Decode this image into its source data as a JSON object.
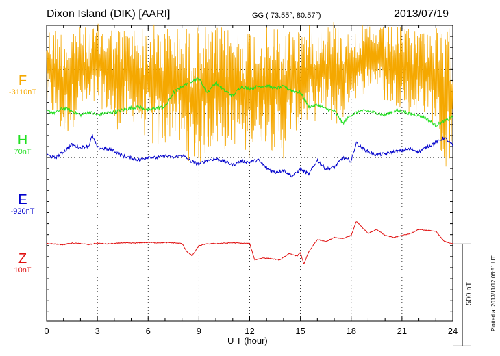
{
  "header": {
    "station": "Dixon Island (DIK)  [AARI]",
    "gg": "GG ( 73.55°,  80.57°)",
    "date": "2013/07/19"
  },
  "plotted_note": "Plotted at 2013/11/12 06:51  UT",
  "scale_label": "500 nT",
  "colors": {
    "F": "#f5a800",
    "H": "#22e022",
    "E": "#0000cc",
    "Z": "#e01010"
  },
  "chart_data": {
    "type": "line",
    "title": "Dixon Island (DIK)  [AARI]",
    "xlabel": "U T (hour)",
    "xlim": [
      0,
      24
    ],
    "x_ticks": [
      0,
      3,
      6,
      9,
      12,
      15,
      18,
      21,
      24
    ],
    "x_tick_labels": [
      "0",
      "3",
      "6",
      "9",
      "12",
      "15",
      "18",
      "21",
      "24"
    ],
    "ylim_nT": [
      -1450,
      0
    ],
    "y_unit": "nT (relative to each component baseline)",
    "grid": "dotted",
    "series": [
      {
        "name": "F",
        "baseline_label": "-3110nT",
        "baseline_nT": -216,
        "note": "highly variable, oscillating roughly between -10 and -720 nT relative to top",
        "x": [
          0,
          0.5,
          1,
          1.5,
          2,
          2.5,
          3,
          3.5,
          4,
          4.5,
          5,
          5.5,
          6,
          6.5,
          7,
          7.5,
          8,
          8.5,
          9,
          9.5,
          10,
          10.5,
          11,
          11.5,
          12,
          12.5,
          13,
          13.5,
          14,
          14.5,
          15,
          15.5,
          16,
          16.5,
          17,
          17.5,
          18,
          18.5,
          19,
          19.5,
          20,
          20.5,
          21,
          21.5,
          22,
          22.5,
          23,
          23.5,
          24
        ],
        "upper": [
          20,
          15,
          10,
          40,
          15,
          10,
          30,
          20,
          20,
          10,
          25,
          15,
          10,
          40,
          20,
          10,
          20,
          10,
          20,
          20,
          10,
          15,
          10,
          15,
          20,
          30,
          10,
          20,
          20,
          10,
          30,
          20,
          40,
          30,
          60,
          30,
          10,
          20,
          20,
          10,
          15,
          20,
          10,
          15,
          20,
          10,
          15,
          10,
          10
        ],
        "lower": [
          -400,
          -450,
          -550,
          -500,
          -400,
          -420,
          -380,
          -400,
          -500,
          -480,
          -450,
          -480,
          -560,
          -600,
          -580,
          -500,
          -630,
          -650,
          -680,
          -600,
          -580,
          -600,
          -560,
          -600,
          -650,
          -550,
          -560,
          -620,
          -640,
          -500,
          -500,
          -460,
          -450,
          -420,
          -480,
          -460,
          -330,
          -350,
          -300,
          -280,
          -360,
          -380,
          -380,
          -420,
          -430,
          -400,
          -500,
          -720,
          -600
        ]
      },
      {
        "name": "H",
        "baseline_label": "70nT",
        "baseline_nT": -432,
        "x": [
          0,
          0.5,
          1,
          1.5,
          2,
          2.5,
          3,
          3.5,
          4,
          4.5,
          5,
          5.5,
          6,
          6.5,
          7,
          7.5,
          8,
          8.5,
          9,
          9.5,
          10,
          10.5,
          11,
          11.5,
          12,
          12.5,
          13,
          13.5,
          14,
          14.5,
          15,
          15.5,
          16,
          16.5,
          17,
          17.5,
          18,
          18.5,
          19,
          19.5,
          20,
          20.5,
          21,
          21.5,
          22,
          22.5,
          23,
          23.5,
          24
        ],
        "values": [
          -420,
          -430,
          -405,
          -420,
          -440,
          -425,
          -440,
          -430,
          -425,
          -415,
          -405,
          -400,
          -415,
          -405,
          -400,
          -330,
          -300,
          -275,
          -260,
          -330,
          -280,
          -320,
          -345,
          -300,
          -310,
          -300,
          -295,
          -310,
          -300,
          -320,
          -330,
          -400,
          -390,
          -410,
          -420,
          -480,
          -440,
          -420,
          -420,
          -430,
          -440,
          -420,
          -420,
          -435,
          -440,
          -460,
          -490,
          -470,
          -450
        ]
      },
      {
        "name": "E",
        "baseline_label": "-920nT",
        "baseline_nT": -648,
        "x": [
          0,
          0.5,
          1,
          1.5,
          2,
          2.5,
          2.7,
          3,
          3.5,
          4,
          4.5,
          5,
          5.5,
          6,
          6.5,
          7,
          7.5,
          8,
          8.5,
          9,
          9.5,
          10,
          10.5,
          11,
          11.5,
          12,
          12.5,
          13,
          13.5,
          14,
          14.5,
          15,
          15.5,
          16,
          16.5,
          17,
          17.5,
          18,
          18.3,
          18.6,
          19,
          19.5,
          20,
          20.5,
          21,
          21.5,
          22,
          22.5,
          23,
          23.5,
          24
        ],
        "values": [
          -635,
          -650,
          -620,
          -585,
          -600,
          -590,
          -540,
          -600,
          -605,
          -615,
          -640,
          -650,
          -660,
          -645,
          -650,
          -640,
          -650,
          -635,
          -665,
          -680,
          -660,
          -655,
          -665,
          -685,
          -665,
          -670,
          -660,
          -700,
          -720,
          -710,
          -740,
          -705,
          -730,
          -660,
          -705,
          -695,
          -650,
          -665,
          -575,
          -600,
          -620,
          -635,
          -630,
          -620,
          -615,
          -605,
          -620,
          -595,
          -575,
          -550,
          -590
        ]
      },
      {
        "name": "Z",
        "baseline_label": "10nT",
        "baseline_nT": -1072,
        "x": [
          0,
          0.5,
          1,
          1.5,
          2,
          2.5,
          3,
          3.5,
          4,
          4.5,
          5,
          5.5,
          6,
          6.5,
          7,
          7.5,
          8,
          8.3,
          8.6,
          9,
          9.5,
          10,
          10.5,
          11,
          11.5,
          12,
          12.3,
          12.8,
          13.3,
          13.8,
          14.3,
          14.8,
          15,
          15.2,
          15.5,
          16,
          16.5,
          17,
          17.5,
          18,
          18.3,
          18.6,
          19,
          19.5,
          20,
          20.5,
          21,
          21.5,
          22,
          22.5,
          23,
          23.5,
          24
        ],
        "values": [
          -1070,
          -1072,
          -1075,
          -1068,
          -1070,
          -1075,
          -1068,
          -1072,
          -1070,
          -1066,
          -1068,
          -1066,
          -1064,
          -1066,
          -1065,
          -1066,
          -1070,
          -1110,
          -1130,
          -1080,
          -1072,
          -1070,
          -1068,
          -1066,
          -1068,
          -1070,
          -1150,
          -1140,
          -1145,
          -1150,
          -1120,
          -1130,
          -1115,
          -1170,
          -1110,
          -1050,
          -1060,
          -1040,
          -1045,
          -1030,
          -960,
          -985,
          -1020,
          -1000,
          -1030,
          -1040,
          -1030,
          -1020,
          -1000,
          -1005,
          -1010,
          -1060,
          -1070
        ]
      }
    ]
  }
}
